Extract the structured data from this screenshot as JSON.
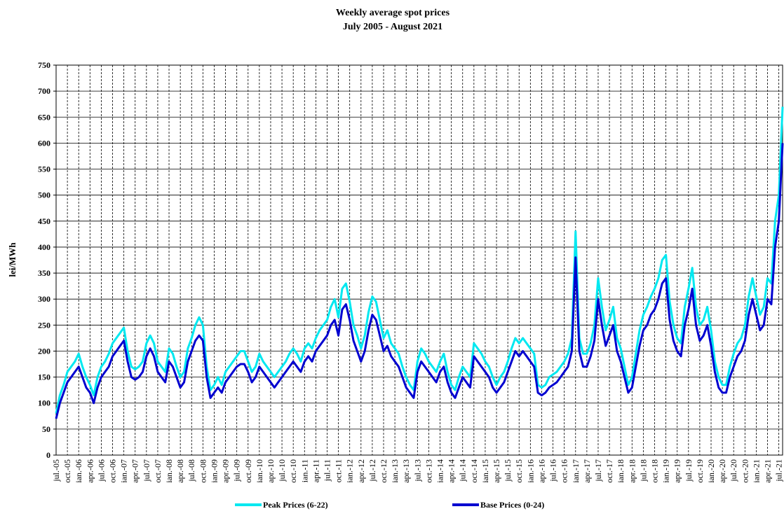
{
  "chart_data": {
    "type": "line",
    "title": "Weekly average spot prices",
    "subtitle": "July 2005 - August 2021",
    "y_label": "lei/MWh",
    "ylim": [
      0,
      750
    ],
    "yticks": [
      0,
      50,
      100,
      150,
      200,
      250,
      300,
      350,
      400,
      450,
      500,
      550,
      600,
      650,
      700,
      750
    ],
    "grid": true,
    "legend": "bottom",
    "categories": [
      "jul.-05",
      null,
      null,
      "oct.-05",
      null,
      null,
      "ian.-06",
      null,
      null,
      "apr.-06",
      null,
      null,
      "jul.-06",
      null,
      null,
      "oct.-06",
      null,
      null,
      "ian.-07",
      null,
      null,
      "apr.-07",
      null,
      null,
      "jul.-07",
      null,
      null,
      "oct.-07",
      null,
      null,
      "ian.-08",
      null,
      null,
      "apr.-08",
      null,
      null,
      "jul.-08",
      null,
      null,
      "oct.-08",
      null,
      null,
      "ian.-09",
      null,
      null,
      "apr.-09",
      null,
      null,
      "jul.-09",
      null,
      null,
      "oct.-09",
      null,
      null,
      "ian.-10",
      null,
      null,
      "apr.-10",
      null,
      null,
      "jul.-10",
      null,
      null,
      "oct.-10",
      null,
      null,
      "ian.-11",
      null,
      null,
      "apr.-11",
      null,
      null,
      "jul.-11",
      null,
      null,
      "oct.-11",
      null,
      null,
      "ian.-12",
      null,
      null,
      "apr.-12",
      null,
      null,
      "jul.-12",
      null,
      null,
      "oct.-12",
      null,
      null,
      "ian.-13",
      null,
      null,
      "apr.-13",
      null,
      null,
      "jul.-13",
      null,
      null,
      "oct.-13",
      null,
      null,
      "ian.-14",
      null,
      null,
      "apr.-14",
      null,
      null,
      "jul.-14",
      null,
      null,
      "oct.-14",
      null,
      null,
      "ian.-15",
      null,
      null,
      "apr.-15",
      null,
      null,
      "jul.-15",
      null,
      null,
      "oct.-15",
      null,
      null,
      "ian.-16",
      null,
      null,
      "apr.-16",
      null,
      null,
      "jul.-16",
      null,
      null,
      "oct.-16",
      null,
      null,
      "ian.-17",
      null,
      null,
      "apr.-17",
      null,
      null,
      "jul.-17",
      null,
      null,
      "oct.-17",
      null,
      null,
      "ian.-18",
      null,
      null,
      "apr.-18",
      null,
      null,
      "jul.-18",
      null,
      null,
      "oct.-18",
      null,
      null,
      "ian.-19",
      null,
      null,
      "apr.-19",
      null,
      null,
      "jul.-19",
      null,
      null,
      "oct.-19",
      null,
      null,
      "ian.-20",
      null,
      null,
      "apr.-20",
      null,
      null,
      "jul.-20",
      null,
      null,
      "oct.-20",
      null,
      null,
      "ian.-21",
      null,
      null,
      "apr.-21",
      null,
      null,
      "jul.-21",
      null
    ],
    "series": [
      {
        "name": "Peak Prices (6-22)",
        "color": "#00e8f0",
        "values": [
          80,
          115,
          135,
          160,
          170,
          180,
          195,
          170,
          150,
          135,
          115,
          150,
          170,
          180,
          195,
          215,
          225,
          235,
          245,
          200,
          170,
          165,
          170,
          180,
          215,
          230,
          215,
          180,
          170,
          160,
          205,
          195,
          170,
          150,
          160,
          205,
          225,
          250,
          265,
          250,
          170,
          125,
          135,
          150,
          135,
          160,
          170,
          180,
          190,
          200,
          200,
          180,
          160,
          170,
          195,
          180,
          170,
          160,
          150,
          160,
          170,
          180,
          195,
          205,
          195,
          180,
          205,
          215,
          205,
          225,
          240,
          250,
          260,
          285,
          300,
          265,
          320,
          330,
          295,
          250,
          230,
          205,
          230,
          275,
          305,
          295,
          260,
          225,
          240,
          215,
          205,
          195,
          170,
          150,
          135,
          125,
          180,
          205,
          195,
          180,
          170,
          160,
          180,
          195,
          160,
          135,
          125,
          150,
          170,
          160,
          150,
          215,
          205,
          195,
          180,
          170,
          150,
          135,
          150,
          160,
          180,
          205,
          225,
          215,
          225,
          215,
          205,
          195,
          135,
          130,
          135,
          150,
          155,
          160,
          170,
          180,
          195,
          225,
          430,
          225,
          195,
          195,
          215,
          250,
          340,
          285,
          240,
          260,
          285,
          225,
          205,
          170,
          135,
          150,
          195,
          240,
          270,
          285,
          305,
          320,
          340,
          375,
          385,
          295,
          250,
          225,
          215,
          285,
          320,
          360,
          285,
          250,
          260,
          285,
          240,
          180,
          150,
          135,
          135,
          170,
          195,
          215,
          225,
          250,
          305,
          340,
          305,
          270,
          285,
          340,
          330,
          450,
          500,
          670
        ]
      },
      {
        "name": "Base Prices (0-24)",
        "color": "#0000d0",
        "values": [
          70,
          100,
          120,
          140,
          150,
          160,
          170,
          150,
          130,
          120,
          100,
          130,
          150,
          160,
          170,
          190,
          200,
          210,
          220,
          180,
          150,
          145,
          150,
          160,
          190,
          205,
          190,
          160,
          150,
          140,
          180,
          170,
          150,
          130,
          140,
          180,
          200,
          220,
          230,
          220,
          150,
          110,
          120,
          130,
          120,
          140,
          150,
          160,
          170,
          175,
          175,
          160,
          140,
          150,
          170,
          160,
          150,
          140,
          130,
          140,
          150,
          160,
          170,
          180,
          170,
          160,
          180,
          190,
          180,
          200,
          210,
          220,
          230,
          250,
          260,
          230,
          280,
          290,
          260,
          220,
          200,
          180,
          200,
          240,
          270,
          260,
          230,
          200,
          210,
          190,
          180,
          170,
          150,
          130,
          120,
          110,
          160,
          180,
          170,
          160,
          150,
          140,
          160,
          170,
          140,
          120,
          110,
          130,
          150,
          140,
          130,
          190,
          180,
          170,
          160,
          150,
          130,
          120,
          130,
          140,
          160,
          180,
          200,
          190,
          200,
          190,
          180,
          170,
          120,
          115,
          120,
          130,
          135,
          140,
          150,
          160,
          170,
          200,
          380,
          200,
          170,
          170,
          190,
          220,
          300,
          250,
          210,
          230,
          250,
          200,
          180,
          150,
          120,
          130,
          170,
          210,
          240,
          250,
          270,
          280,
          300,
          330,
          340,
          260,
          220,
          200,
          190,
          250,
          280,
          320,
          250,
          220,
          230,
          250,
          210,
          160,
          130,
          120,
          120,
          150,
          170,
          190,
          200,
          220,
          270,
          300,
          270,
          240,
          250,
          300,
          290,
          400,
          450,
          600
        ]
      }
    ]
  }
}
